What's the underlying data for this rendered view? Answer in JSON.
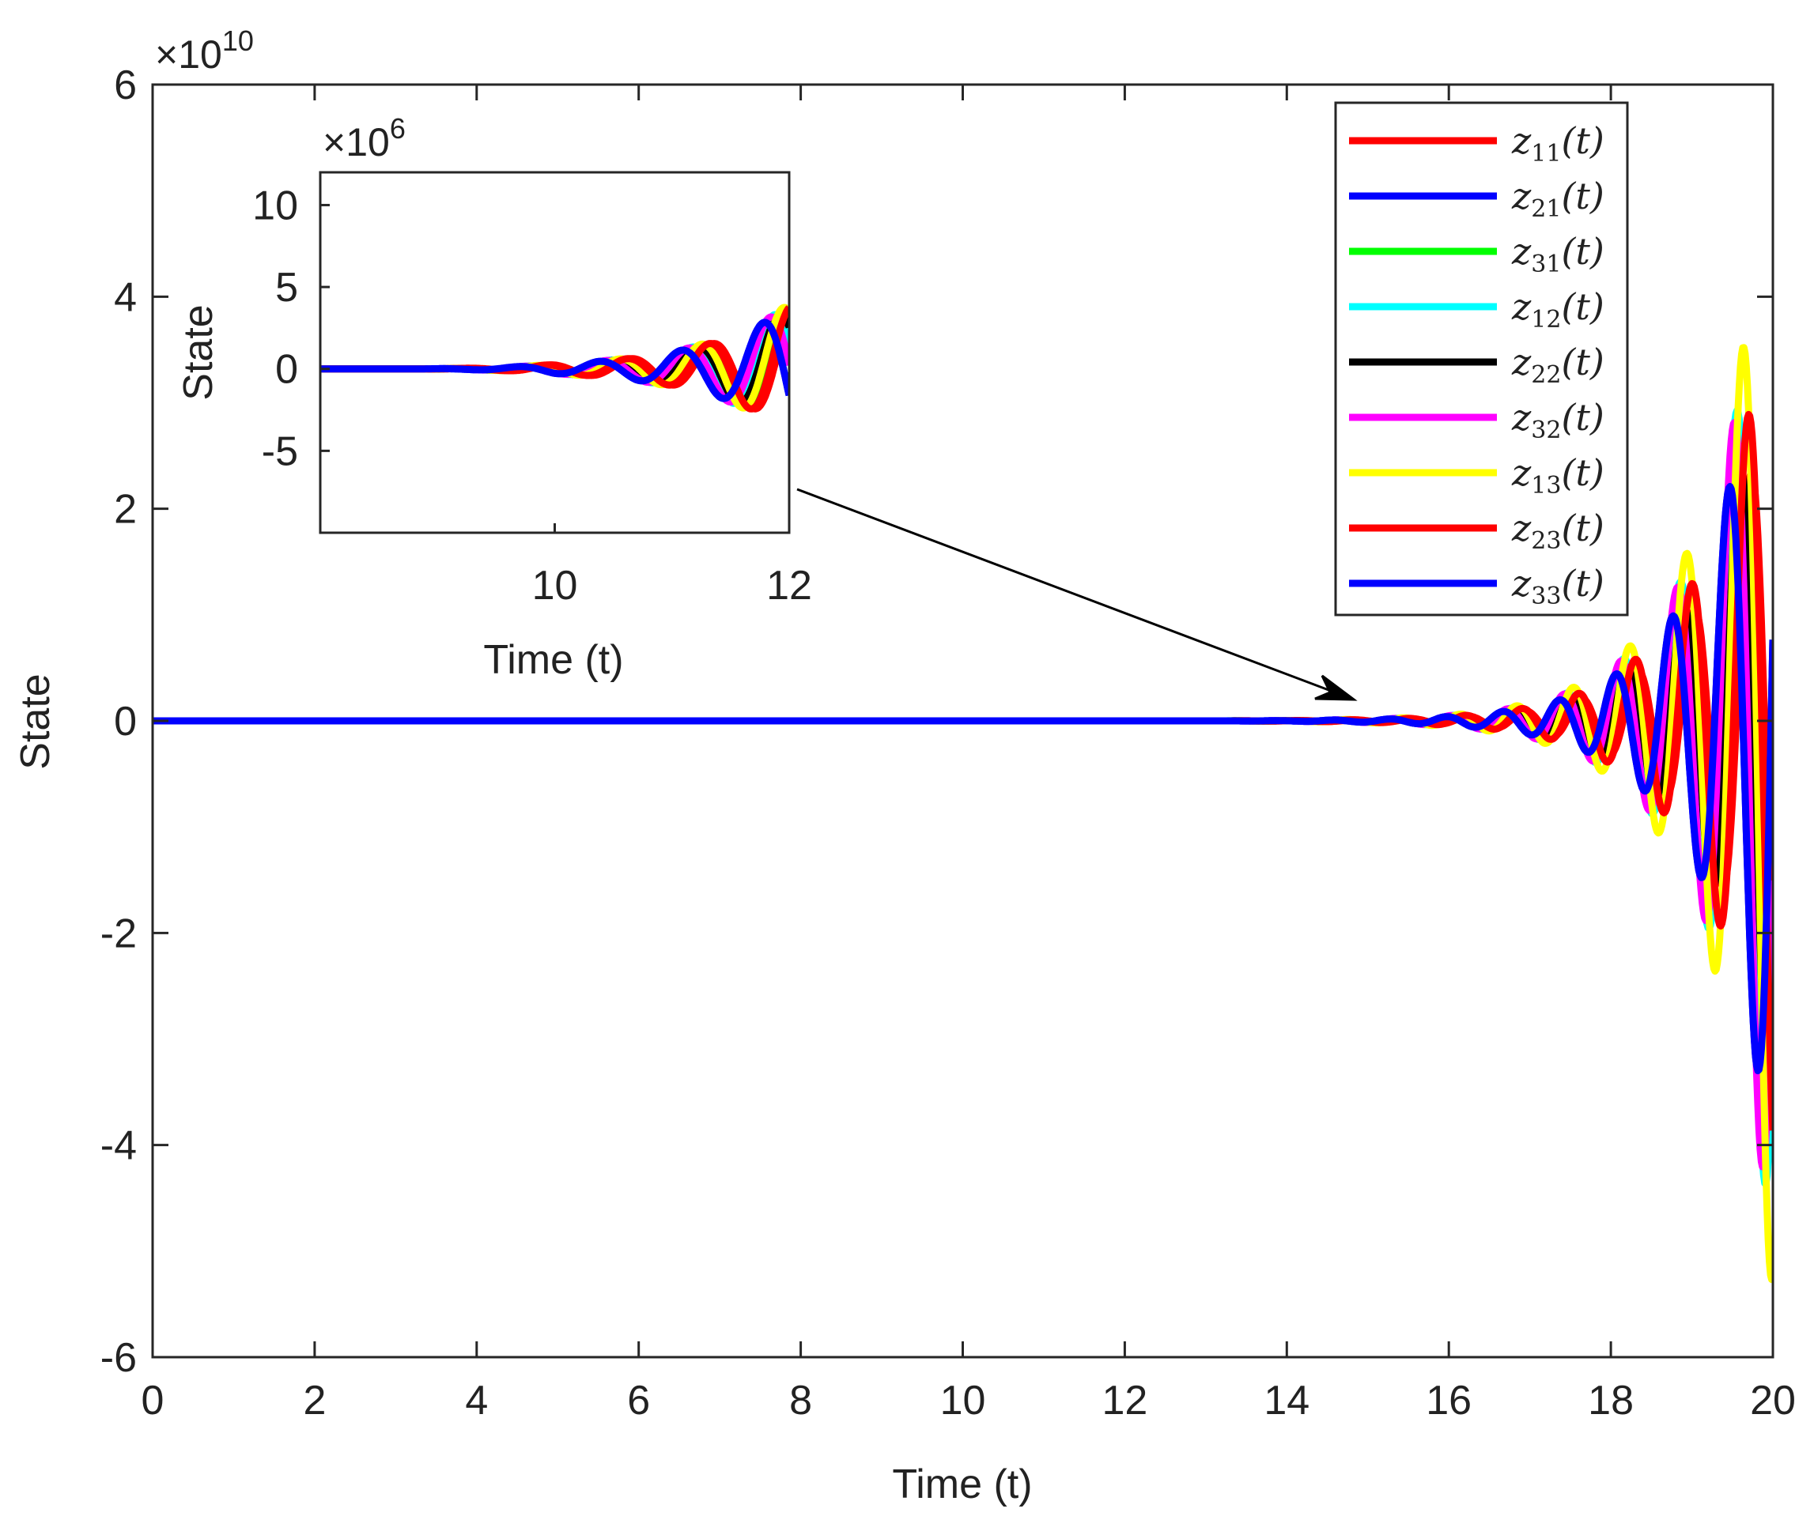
{
  "chart_data": [
    {
      "id": "main",
      "type": "line",
      "title": "",
      "xlabel": "Time (t)",
      "ylabel": "State",
      "xlim": [
        0,
        20
      ],
      "ylim": [
        -6,
        6
      ],
      "xticks": [
        0,
        2,
        4,
        6,
        8,
        10,
        12,
        14,
        16,
        18,
        20
      ],
      "yticks": [
        -6,
        -4,
        -2,
        0,
        2,
        4,
        6
      ],
      "ytick_labels": [
        "-6",
        "-4",
        "-2",
        "0",
        "2",
        "4",
        "6"
      ],
      "y_exponent_label": "×10^10",
      "grid": false,
      "legend_position": "top-right",
      "series_model": "oscillation about 0 with exponentially growing amplitude starting near t = 13; each series phase-shifted",
      "growth_rate": 1.15,
      "angular_frequency": 9.0,
      "series": [
        {
          "name": "z11(t)",
          "sub": "11",
          "color": "#ff0000",
          "amplitude_at_t20": 3.2,
          "phase": 0.0
        },
        {
          "name": "z21(t)",
          "sub": "21",
          "color": "#0000ff",
          "amplitude_at_t20": 4.1,
          "phase": 2.4
        },
        {
          "name": "z31(t)",
          "sub": "31",
          "color": "#00ff00",
          "amplitude_at_t20": 3.3,
          "phase": 0.7
        },
        {
          "name": "z12(t)",
          "sub": "12",
          "color": "#00ffff",
          "amplitude_at_t20": 4.9,
          "phase": 1.6
        },
        {
          "name": "z22(t)",
          "sub": "22",
          "color": "#000000",
          "amplitude_at_t20": 3.8,
          "phase": 1.2
        },
        {
          "name": "z32(t)",
          "sub": "32",
          "color": "#ff00ff",
          "amplitude_at_t20": 4.9,
          "phase": 1.9
        },
        {
          "name": "z13(t)",
          "sub": "13",
          "color": "#ffff00",
          "amplitude_at_t20": 5.4,
          "phase": 0.9
        },
        {
          "name": "z23(t)",
          "sub": "23",
          "color": "#ff0000",
          "amplitude_at_t20": 4.1,
          "phase": 0.3
        },
        {
          "name": "z33(t)",
          "sub": "33",
          "color": "#0000ff",
          "amplitude_at_t20": 4.1,
          "phase": 2.4
        }
      ],
      "annotation": "arrow from inset to t ≈ 15, y ≈ 0"
    },
    {
      "id": "inset",
      "type": "line",
      "xlabel": "Time (t)",
      "ylabel": "State",
      "xlim": [
        8,
        12
      ],
      "ylim": [
        -10,
        12
      ],
      "xticks": [
        10,
        12
      ],
      "xtick_labels": [
        "10",
        "12"
      ],
      "yticks": [
        -5,
        0,
        5,
        10
      ],
      "ytick_labels": [
        "-5",
        "0",
        "5",
        "10"
      ],
      "y_exponent_label": "×10^6",
      "grid": false,
      "growth_rate": 1.3,
      "angular_frequency": 9.0,
      "amplitude_at_t12": 4.0
    }
  ],
  "legend": {
    "entries": [
      "z11(t)",
      "z21(t)",
      "z31(t)",
      "z12(t)",
      "z22(t)",
      "z32(t)",
      "z13(t)",
      "z23(t)",
      "z33(t)"
    ]
  }
}
